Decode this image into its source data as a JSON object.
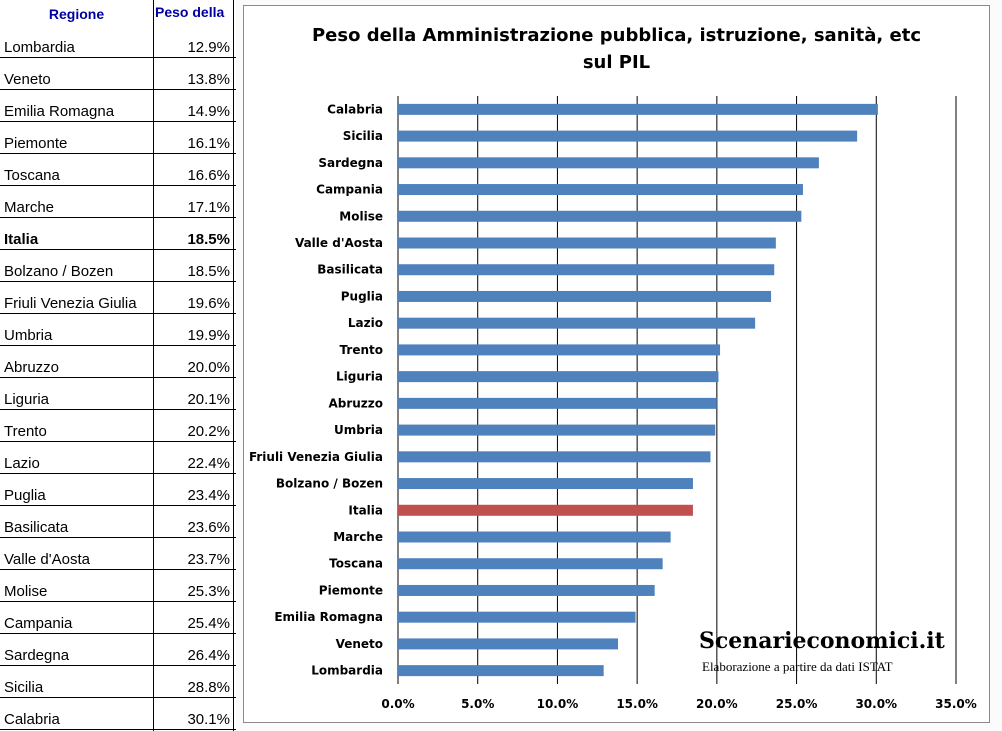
{
  "table": {
    "header_region": "Regione",
    "header_weight": "Peso della",
    "rows": [
      {
        "name": "Lombardia",
        "value": "12.9%",
        "bold": false
      },
      {
        "name": "Veneto",
        "value": "13.8%",
        "bold": false
      },
      {
        "name": "Emilia Romagna",
        "value": "14.9%",
        "bold": false
      },
      {
        "name": "Piemonte",
        "value": "16.1%",
        "bold": false
      },
      {
        "name": "Toscana",
        "value": "16.6%",
        "bold": false
      },
      {
        "name": "Marche",
        "value": "17.1%",
        "bold": false
      },
      {
        "name": "Italia",
        "value": "18.5%",
        "bold": true
      },
      {
        "name": "Bolzano / Bozen",
        "value": "18.5%",
        "bold": false
      },
      {
        "name": "Friuli Venezia Giulia",
        "value": "19.6%",
        "bold": false
      },
      {
        "name": "Umbria",
        "value": "19.9%",
        "bold": false
      },
      {
        "name": "Abruzzo",
        "value": "20.0%",
        "bold": false
      },
      {
        "name": "Liguria",
        "value": "20.1%",
        "bold": false
      },
      {
        "name": "Trento",
        "value": "20.2%",
        "bold": false
      },
      {
        "name": "Lazio",
        "value": "22.4%",
        "bold": false
      },
      {
        "name": "Puglia",
        "value": "23.4%",
        "bold": false
      },
      {
        "name": "Basilicata",
        "value": "23.6%",
        "bold": false
      },
      {
        "name": "Valle d'Aosta",
        "value": "23.7%",
        "bold": false
      },
      {
        "name": "Molise",
        "value": "25.3%",
        "bold": false
      },
      {
        "name": "Campania",
        "value": "25.4%",
        "bold": false
      },
      {
        "name": "Sardegna",
        "value": "26.4%",
        "bold": false
      },
      {
        "name": "Sicilia",
        "value": "28.8%",
        "bold": false
      },
      {
        "name": "Calabria",
        "value": "30.1%",
        "bold": false
      }
    ]
  },
  "chart": {
    "title_line1": "Peso della Amministrazione pubblica, istruzione, sanità, etc",
    "title_line2": "sul PIL",
    "brand": "Scenarieconomici.it",
    "brand_sub": "Elaborazione a partire da dati ISTAT"
  },
  "colors": {
    "bar": "#4f81bd",
    "highlight_bar": "#c0504d",
    "grid": "#000000",
    "header_text": "#0000a0"
  },
  "chart_data": {
    "type": "bar",
    "orientation": "horizontal",
    "title": "Peso della Amministrazione pubblica, istruzione, sanità, etc sul PIL",
    "categories": [
      "Calabria",
      "Sicilia",
      "Sardegna",
      "Campania",
      "Molise",
      "Valle d'Aosta",
      "Basilicata",
      "Puglia",
      "Lazio",
      "Trento",
      "Liguria",
      "Abruzzo",
      "Umbria",
      "Friuli Venezia Giulia",
      "Bolzano / Bozen",
      "Italia",
      "Marche",
      "Toscana",
      "Piemonte",
      "Emilia Romagna",
      "Veneto",
      "Lombardia"
    ],
    "values": [
      30.1,
      28.8,
      26.4,
      25.4,
      25.3,
      23.7,
      23.6,
      23.4,
      22.4,
      20.2,
      20.1,
      20.0,
      19.9,
      19.6,
      18.5,
      18.5,
      17.1,
      16.6,
      16.1,
      14.9,
      13.8,
      12.9
    ],
    "highlight": "Italia",
    "xlim": [
      0,
      35
    ],
    "xticks": [
      "0.0%",
      "5.0%",
      "10.0%",
      "15.0%",
      "20.0%",
      "25.0%",
      "30.0%",
      "35.0%"
    ],
    "xtick_values": [
      0,
      5,
      10,
      15,
      20,
      25,
      30,
      35
    ],
    "grid": true,
    "legend": "none"
  }
}
